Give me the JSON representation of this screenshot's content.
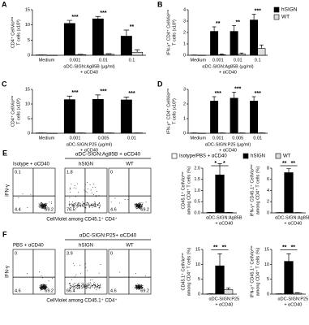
{
  "chart_data": [
    {
      "panel": "A",
      "type": "bar",
      "ylabel": [
        "CD4⁺ CellVioˡᵒʷ",
        "T cells (x10³)"
      ],
      "xlabel": [
        "αDC-SIGN:Ag85B (μg/ml)",
        "+ αCD40"
      ],
      "categories": [
        "Medium",
        "0.001",
        "0.01",
        "0.1"
      ],
      "ylim": [
        0,
        15
      ],
      "yticks": [
        0,
        5,
        10,
        15
      ],
      "series": [
        {
          "color": "#000000",
          "values": [
            0.1,
            10.5,
            12,
            6.3
          ],
          "errors": [
            0,
            1,
            0.8,
            2
          ]
        },
        {
          "color": "#dddddd",
          "values": [
            0,
            0.2,
            0.3,
            1
          ],
          "errors": [
            0,
            0.1,
            0.2,
            0.8
          ]
        }
      ],
      "significance": [
        null,
        "***",
        "***",
        "**"
      ]
    },
    {
      "panel": "B",
      "type": "bar",
      "ylabel": [
        "IFN-γ⁺ CD4⁺ CellVioˡᵒʷ",
        "T cells (x10³)"
      ],
      "xlabel": [
        "αDC-SIGN:Ag85B (μg/ml)",
        "+ αCD40"
      ],
      "categories": [
        "Medium",
        "0.001",
        "0.01",
        "0.1"
      ],
      "ylim": [
        0,
        4
      ],
      "yticks": [
        0,
        1,
        2,
        3,
        4
      ],
      "legend": "right",
      "series": [
        {
          "name": "hSIGN",
          "color": "#000000",
          "values": [
            0.02,
            2.1,
            2.1,
            3.1
          ],
          "errors": [
            0,
            0.4,
            0.5,
            0.5
          ]
        },
        {
          "name": "WT",
          "color": "#dddddd",
          "values": [
            0,
            0.05,
            0.1,
            0.6
          ],
          "errors": [
            0,
            0.05,
            0.1,
            0.3
          ]
        }
      ],
      "significance": [
        null,
        "**",
        "**",
        "***"
      ]
    },
    {
      "panel": "C",
      "type": "bar",
      "ylabel": [
        "CD4⁺ CellVioˡᵒʷ",
        "T cells (x10³)"
      ],
      "xlabel": [
        "αDC-SIGN:P25 (μg/ml)",
        "+ αCD40"
      ],
      "categories": [
        "Medium",
        "0.001",
        "0.005",
        "0.01"
      ],
      "ylim": [
        0,
        15
      ],
      "yticks": [
        0,
        5,
        10,
        15
      ],
      "series": [
        {
          "color": "#000000",
          "values": [
            0.1,
            11.5,
            11.6,
            11.4
          ],
          "errors": [
            0,
            1.2,
            1.5,
            1
          ]
        },
        {
          "color": "#dddddd",
          "values": [
            0,
            0.1,
            0.1,
            0.1
          ],
          "errors": [
            0,
            0,
            0,
            0
          ]
        }
      ],
      "significance": [
        null,
        "***",
        "***",
        "***"
      ]
    },
    {
      "panel": "D",
      "type": "bar",
      "ylabel": [
        "IFN-γ⁺ CD4⁺ CellVioˡᵒʷ",
        "T cells (x10³)"
      ],
      "xlabel": [
        "αDC-SIGN:P25 (μg/ml)",
        "+ αCD40"
      ],
      "categories": [
        "Medium",
        "0.001",
        "0.005",
        "0.01"
      ],
      "ylim": [
        0,
        3
      ],
      "yticks": [
        0,
        1,
        2,
        3
      ],
      "series": [
        {
          "color": "#000000",
          "values": [
            0.02,
            2.2,
            2.4,
            2.2
          ],
          "errors": [
            0,
            0.3,
            0.4,
            0.3
          ]
        },
        {
          "color": "#dddddd",
          "values": [
            0,
            0.02,
            0.02,
            0.02
          ],
          "errors": [
            0,
            0,
            0,
            0
          ]
        }
      ],
      "significance": [
        null,
        "***",
        "***",
        "***"
      ]
    },
    {
      "type": "bar",
      "ylabel": [
        "CD45.1⁺ CellVioˡᵒʷ",
        "among CD4⁺ T cells (%)"
      ],
      "xlabel": [
        "αDC-SIGN:Ag85B",
        "+ αCD40"
      ],
      "categories": [
        null
      ],
      "ylim": [
        0,
        2
      ],
      "yticks": [
        {
          "value": 0,
          "label": "0.0"
        },
        {
          "value": 0.5,
          "label": "0.5"
        },
        {
          "value": 1,
          "label": "1.0"
        },
        {
          "value": 1.5,
          "label": "1.5"
        },
        {
          "value": 2,
          "label": "2.0"
        }
      ],
      "legend": "top",
      "series": [
        {
          "name": "Isotype/PBS + αCD40",
          "color": "#ffffff",
          "values": [
            0.02
          ],
          "errors": [
            0
          ]
        },
        {
          "name": "hSIGN",
          "color": "#000000",
          "values": [
            1.7
          ],
          "errors": [
            0.5
          ]
        },
        {
          "name": "WT",
          "color": "#dddddd",
          "values": [
            0.02
          ],
          "errors": [
            0
          ]
        }
      ],
      "significance": [
        "*",
        "*"
      ]
    },
    {
      "type": "bar",
      "ylabel": [
        "IFN-γ⁺ CD45.1⁺ CellVioˡᵒʷ",
        "among CD4⁺ T cells (%)"
      ],
      "xlabel": [
        "αDC-SIGN:Ag85B",
        "+ αCD40"
      ],
      "categories": [
        null
      ],
      "ylim": [
        0,
        8
      ],
      "yticks": [
        0,
        2,
        4,
        6,
        8
      ],
      "series": [
        {
          "color": "#ffffff",
          "values": [
            0.05
          ],
          "errors": [
            0
          ]
        },
        {
          "color": "#000000",
          "values": [
            7.2
          ],
          "errors": [
            0.7
          ]
        },
        {
          "color": "#dddddd",
          "values": [
            0.05
          ],
          "errors": [
            0
          ]
        }
      ],
      "significance": [
        "**",
        "**"
      ]
    },
    {
      "type": "bar",
      "ylabel": [
        "CD45.1⁺ CellVioˡᵒʷ",
        "among CD4⁺ T cells (%)"
      ],
      "xlabel": [
        "αDC-SIGN:P25",
        "+ αCD40"
      ],
      "categories": [
        null
      ],
      "ylim": [
        0,
        15
      ],
      "yticks": [
        0,
        5,
        10,
        15
      ],
      "series": [
        {
          "color": "#ffffff",
          "values": [
            0.1
          ],
          "errors": [
            0
          ]
        },
        {
          "color": "#000000",
          "values": [
            9.5
          ],
          "errors": [
            4
          ]
        },
        {
          "color": "#dddddd",
          "values": [
            1.5
          ],
          "errors": [
            0.6
          ]
        }
      ],
      "significance": [
        "**",
        "**"
      ]
    },
    {
      "type": "bar",
      "ylabel": [
        "IFN-γ⁺ CD45.1⁺ CellVioˡᵒʷ",
        "among CD4⁺ T cells (%)"
      ],
      "xlabel": [
        "αDC-SIGN:P25",
        "+ αCD40"
      ],
      "categories": [
        null
      ],
      "ylim": [
        0,
        15
      ],
      "yticks": [
        0,
        5,
        10,
        15
      ],
      "series": [
        {
          "color": "#ffffff",
          "values": [
            0.1
          ],
          "errors": [
            0
          ]
        },
        {
          "color": "#000000",
          "values": [
            11
          ],
          "errors": [
            2.5
          ]
        },
        {
          "color": "#dddddd",
          "values": [
            0.3
          ],
          "errors": [
            0.2
          ]
        }
      ],
      "significance": [
        "**",
        "**"
      ]
    }
  ],
  "flow": [
    {
      "panel": "E",
      "header": "αDC-SIGN:Ag85B + αCD40",
      "y_label": "IFN-γ",
      "x_label": "CellViolet among CD45.1⁺ CD4⁺",
      "plots": [
        {
          "title": "Isotype + αCD40",
          "quadrants": [
            "0.1",
            null,
            "4.4",
            "69.2"
          ]
        },
        {
          "title": "hSIGN",
          "quadrants": [
            "1.8",
            null,
            "76.5",
            null
          ]
        },
        {
          "title": "WT",
          "quadrants": [
            "0",
            null,
            "4.6",
            "69.2"
          ]
        }
      ]
    },
    {
      "panel": "F",
      "header": "αDC-SIGN:P25+ αCD40",
      "y_label": "IFN-γ",
      "x_label": "CellViolet among CD45.1⁺ CD4⁺",
      "plots": [
        {
          "title": "PBS + αCD40",
          "quadrants": [
            "0",
            null,
            "4.6",
            "69.2"
          ]
        },
        {
          "title": "hSIGN",
          "quadrants": [
            "3.9",
            null,
            "66.4",
            null
          ]
        },
        {
          "title": "WT",
          "quadrants": [
            "0",
            null,
            "4.6",
            "69.2"
          ]
        }
      ]
    }
  ]
}
